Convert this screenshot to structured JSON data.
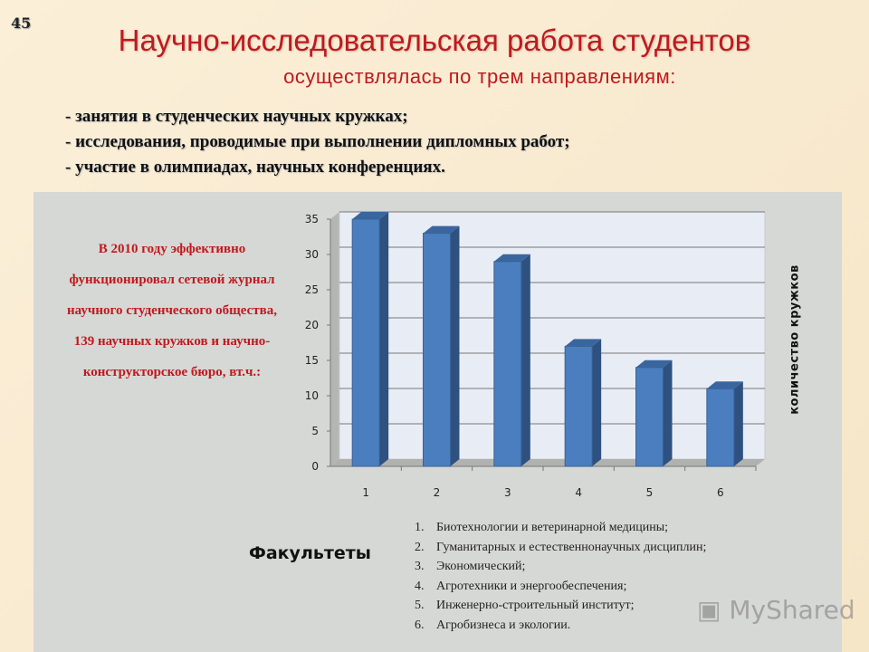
{
  "slide_number": "45",
  "title": "Научно-исследовательская работа студентов",
  "subtitle": "осуществлялась по трем  направлениям:",
  "bullets": [
    "- занятия в студенческих научных кружках;",
    "- исследования, проводимые при выполнении дипломных работ;",
    "- участие в олимпиадах, научных конференциях."
  ],
  "note": "В 2010 году эффективно функционировал сетевой журнал научного студенческого общества, 139 научных кружков и научно-конструкторское бюро, вт.ч.:",
  "watermark": "MyShared",
  "colors": {
    "title": "#c0191e",
    "bar": "#4a7ebf",
    "bar_side": "#2e5180",
    "bar_top": "#3a66a0"
  },
  "chart_data": {
    "type": "bar",
    "style": "3d-column",
    "categories": [
      "1",
      "2",
      "3",
      "4",
      "5",
      "6"
    ],
    "values": [
      35,
      33,
      29,
      17,
      14,
      11
    ],
    "xlabel": "Факультеты",
    "ylabel": "количество кружков",
    "ylim": [
      0,
      35
    ],
    "yticks": [
      "0",
      "5",
      "10",
      "15",
      "20",
      "25",
      "30",
      "35"
    ],
    "grid": true,
    "legend_items": [
      {
        "n": "1.",
        "label": "Биотехнологии и ветеринарной медицины;"
      },
      {
        "n": "2.",
        "label": "Гуманитарных и естественнонаучных дисциплин;"
      },
      {
        "n": "3.",
        "label": "Экономический;"
      },
      {
        "n": "4.",
        "label": "Агротехники и энергообеспечения;"
      },
      {
        "n": "5.",
        "label": "Инженерно-строительный институт;"
      },
      {
        "n": "6.",
        "label": "Агробизнеса и экологии."
      }
    ]
  }
}
